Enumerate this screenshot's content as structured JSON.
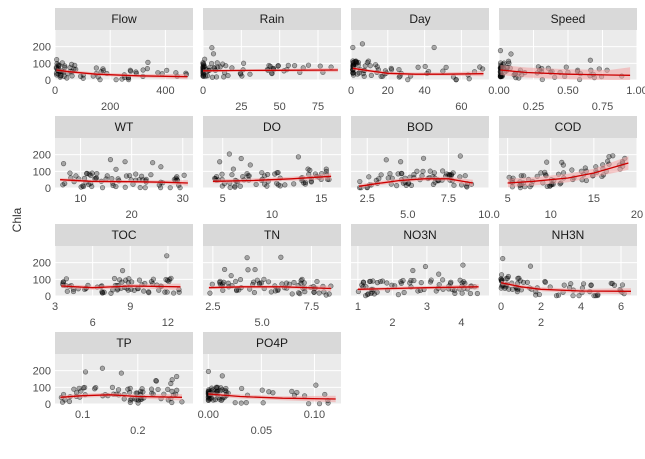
{
  "ylabel": "Chla",
  "chart_data": {
    "type": "scatter",
    "ylabel": "Chla",
    "ylim": [
      0,
      300
    ],
    "y_ticks": [
      0,
      100,
      200
    ],
    "colors": {
      "panel_bg": "#ebebeb",
      "strip_bg": "#d9d9d9",
      "grid": "#ffffff",
      "point": "#000000",
      "smooth": "#cc0000",
      "band": "#f2a0a0"
    },
    "facets": [
      {
        "name": "Flow",
        "xlim": [
          0,
          500
        ],
        "ticks_upper": [
          "0",
          "400"
        ],
        "ticks_lower": [
          "200"
        ],
        "tick_vals_upper": [
          0,
          400
        ],
        "tick_vals_lower": [
          200
        ],
        "smooth": [
          [
            5,
            60
          ],
          [
            50,
            50
          ],
          [
            150,
            35
          ],
          [
            300,
            25
          ],
          [
            480,
            20
          ]
        ],
        "band_w": 10
      },
      {
        "name": "Rain",
        "xlim": [
          0,
          90
        ],
        "ticks_upper": [
          "0"
        ],
        "ticks_lower": [
          "25",
          "50",
          "75"
        ],
        "tick_vals_upper": [
          0
        ],
        "tick_vals_lower": [
          25,
          50,
          75
        ],
        "smooth": [
          [
            0,
            55
          ],
          [
            20,
            57
          ],
          [
            50,
            58
          ],
          [
            88,
            60
          ]
        ],
        "band_w": 8
      },
      {
        "name": "Day",
        "xlim": [
          0,
          75
        ],
        "ticks_upper": [
          "0",
          "20",
          "40"
        ],
        "ticks_lower": [
          "60"
        ],
        "tick_vals_upper": [
          0,
          20,
          40
        ],
        "tick_vals_lower": [
          60
        ],
        "smooth": [
          [
            1,
            70
          ],
          [
            10,
            55
          ],
          [
            20,
            40
          ],
          [
            35,
            35
          ],
          [
            50,
            35
          ],
          [
            72,
            38
          ]
        ],
        "band_w": 10
      },
      {
        "name": "Speed",
        "xlim": [
          0,
          1
        ],
        "ticks_upper": [
          "0.00",
          "0.50",
          "1.00"
        ],
        "ticks_lower": [
          "0.25",
          "0.75"
        ],
        "tick_vals_upper": [
          0,
          0.5,
          1
        ],
        "tick_vals_lower": [
          0.25,
          0.75
        ],
        "smooth": [
          [
            0.01,
            60
          ],
          [
            0.2,
            45
          ],
          [
            0.5,
            35
          ],
          [
            0.8,
            30
          ],
          [
            0.95,
            28
          ]
        ],
        "band_w": 30
      },
      {
        "name": "WT",
        "xlim": [
          5,
          32
        ],
        "ticks_upper": [
          "10",
          "30"
        ],
        "ticks_lower": [
          "20"
        ],
        "tick_vals_upper": [
          10,
          30
        ],
        "tick_vals_lower": [
          20
        ],
        "smooth": [
          [
            6,
            50
          ],
          [
            12,
            40
          ],
          [
            20,
            38
          ],
          [
            26,
            35
          ],
          [
            31,
            30
          ]
        ],
        "band_w": 10
      },
      {
        "name": "DO",
        "xlim": [
          3,
          17
        ],
        "ticks_upper": [
          "5",
          "15"
        ],
        "ticks_lower": [
          "10"
        ],
        "tick_vals_upper": [
          5,
          15
        ],
        "tick_vals_lower": [
          10
        ],
        "smooth": [
          [
            4,
            40
          ],
          [
            8,
            45
          ],
          [
            12,
            55
          ],
          [
            16,
            70
          ]
        ],
        "band_w": 12
      },
      {
        "name": "BOD",
        "xlim": [
          1.5,
          10
        ],
        "ticks_upper": [
          "2.5",
          "7.5"
        ],
        "ticks_lower": [
          "5.0",
          "10.0"
        ],
        "tick_vals_upper": [
          2.5,
          7.5
        ],
        "tick_vals_lower": [
          5,
          10
        ],
        "smooth": [
          [
            2,
            10
          ],
          [
            3,
            25
          ],
          [
            4.5,
            45
          ],
          [
            6,
            55
          ],
          [
            7.5,
            55
          ],
          [
            9,
            30
          ]
        ],
        "band_w": 12
      },
      {
        "name": "COD",
        "xlim": [
          4,
          20
        ],
        "ticks_upper": [
          "5",
          "15"
        ],
        "ticks_lower": [
          "10",
          "20"
        ],
        "tick_vals_upper": [
          5,
          15
        ],
        "tick_vals_lower": [
          10,
          20
        ],
        "smooth": [
          [
            5,
            30
          ],
          [
            8,
            40
          ],
          [
            12,
            60
          ],
          [
            15,
            90
          ],
          [
            19,
            150
          ]
        ],
        "band_w": 25
      },
      {
        "name": "TOC",
        "xlim": [
          3,
          14
        ],
        "ticks_upper": [
          "3",
          "9"
        ],
        "ticks_lower": [
          "6",
          "12"
        ],
        "tick_vals_upper": [
          3,
          9
        ],
        "tick_vals_lower": [
          6,
          12
        ],
        "smooth": [
          [
            3.5,
            60
          ],
          [
            6,
            50
          ],
          [
            9,
            60
          ],
          [
            13,
            55
          ]
        ],
        "band_w": 12
      },
      {
        "name": "TN",
        "xlim": [
          2,
          9
        ],
        "ticks_upper": [
          "2.5",
          "7.5"
        ],
        "ticks_lower": [
          "5.0"
        ],
        "tick_vals_upper": [
          2.5,
          7.5
        ],
        "tick_vals_lower": [
          5
        ],
        "smooth": [
          [
            2.3,
            50
          ],
          [
            4,
            55
          ],
          [
            6,
            55
          ],
          [
            8.5,
            45
          ]
        ],
        "band_w": 10
      },
      {
        "name": "NO3N",
        "xlim": [
          0.8,
          4.8
        ],
        "ticks_upper": [
          "1",
          "3"
        ],
        "ticks_lower": [
          "2",
          "4"
        ],
        "tick_vals_upper": [
          1,
          3
        ],
        "tick_vals_lower": [
          2,
          4
        ],
        "smooth": [
          [
            1,
            40
          ],
          [
            2,
            45
          ],
          [
            3,
            50
          ],
          [
            4.5,
            55
          ]
        ],
        "band_w": 10
      },
      {
        "name": "NH3N",
        "xlim": [
          -0.1,
          6.8
        ],
        "ticks_upper": [
          "0",
          "2",
          "4",
          "6"
        ],
        "ticks_lower": [
          "2"
        ],
        "tick_vals_upper": [
          0,
          2,
          4,
          6
        ],
        "tick_vals_lower": [
          2
        ],
        "smooth": [
          [
            0,
            80
          ],
          [
            1,
            55
          ],
          [
            2,
            40
          ],
          [
            4,
            30
          ],
          [
            6.5,
            28
          ]
        ],
        "band_w": 12
      },
      {
        "name": "TP",
        "xlim": [
          0.05,
          0.3
        ],
        "ticks_upper": [
          "0.1"
        ],
        "ticks_lower": [
          "0.2"
        ],
        "tick_vals_upper": [
          0.1
        ],
        "tick_vals_lower": [
          0.2
        ],
        "smooth": [
          [
            0.06,
            40
          ],
          [
            0.1,
            50
          ],
          [
            0.15,
            55
          ],
          [
            0.2,
            45
          ],
          [
            0.28,
            40
          ]
        ],
        "band_w": 12
      },
      {
        "name": "PO4P",
        "xlim": [
          -0.005,
          0.125
        ],
        "ticks_upper": [
          "0.00",
          "0.10"
        ],
        "ticks_lower": [
          "0.05"
        ],
        "tick_vals_upper": [
          0,
          0.1
        ],
        "tick_vals_lower": [
          0.05
        ],
        "smooth": [
          [
            0,
            60
          ],
          [
            0.03,
            45
          ],
          [
            0.07,
            35
          ],
          [
            0.12,
            30
          ]
        ],
        "band_w": 12
      }
    ]
  }
}
